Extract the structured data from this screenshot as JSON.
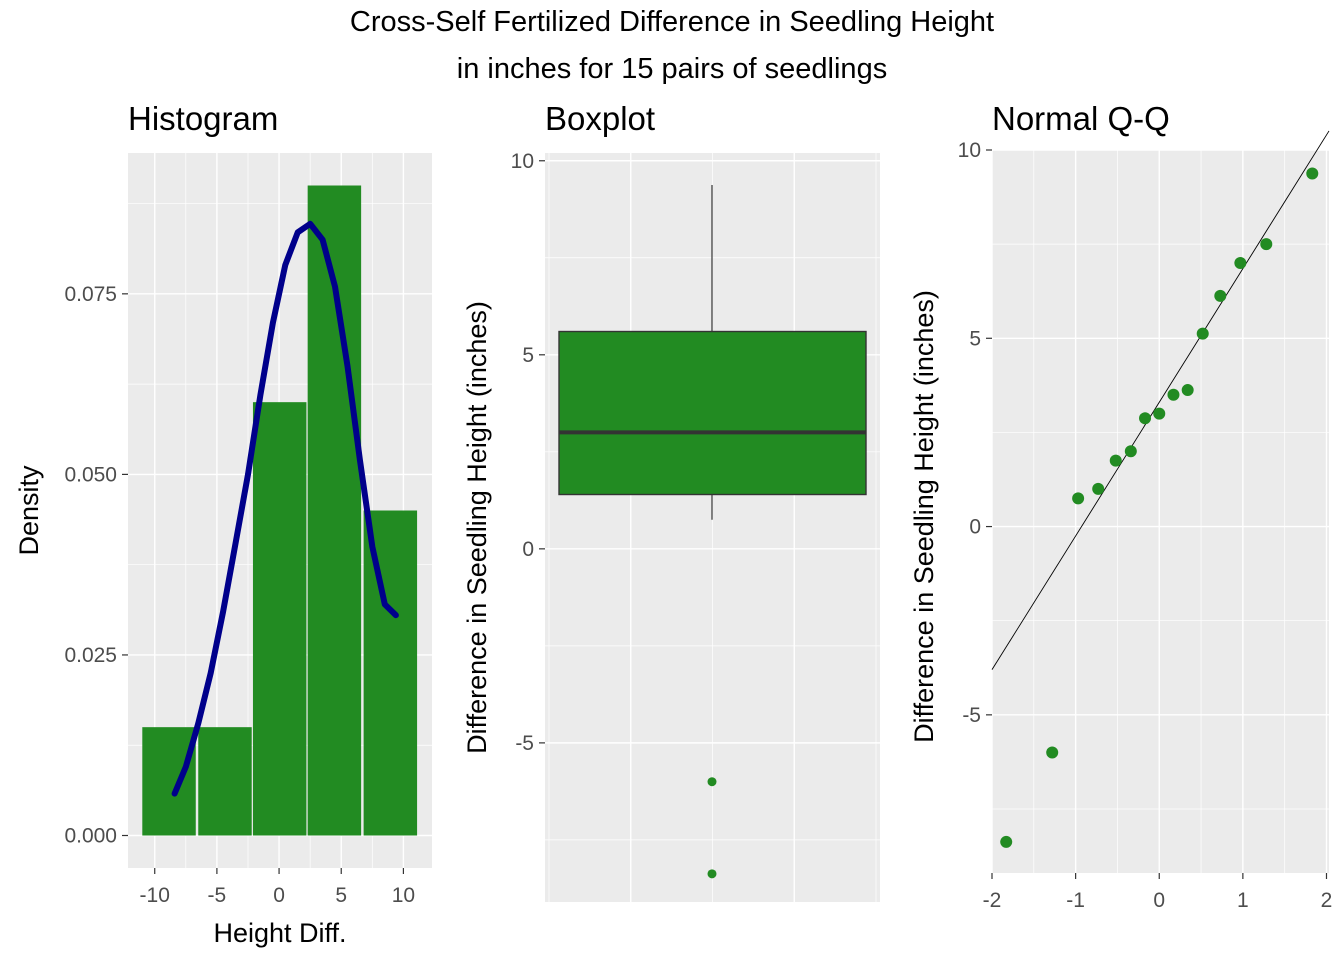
{
  "title_line1": "Cross-Self Fertilized Difference in Seedling Height",
  "title_line2": "in inches for 15 pairs of seedlings",
  "colors": {
    "panel_bg": "#EBEBEB",
    "grid": "#FFFFFF",
    "fill": "#228B22",
    "curve": "#00008B",
    "axis_text": "#4D4D4D"
  },
  "chart_data": [
    {
      "type": "bar",
      "panel": "histogram",
      "title": "Histogram",
      "xlabel": "Height Diff.",
      "ylabel": "Density",
      "xlim": [
        -12.15,
        12.3
      ],
      "ylim": [
        -0.0045,
        0.0945
      ],
      "x_ticks": [
        "-10",
        "-5",
        "0",
        "5",
        "10"
      ],
      "x_tick_values": [
        -10,
        -5,
        0,
        5,
        10
      ],
      "y_ticks": [
        "0.000",
        "0.025",
        "0.050",
        "0.075"
      ],
      "y_tick_values": [
        0,
        0.025,
        0.05,
        0.075
      ],
      "bins": [
        {
          "from": -11,
          "to": -6.7,
          "density": 0.015
        },
        {
          "from": -6.5,
          "to": -2.2,
          "density": 0.015
        },
        {
          "from": -2.1,
          "to": 2.2,
          "density": 0.06
        },
        {
          "from": 2.3,
          "to": 6.6,
          "density": 0.09
        },
        {
          "from": 6.8,
          "to": 11.1,
          "density": 0.045
        }
      ],
      "density_curve": {
        "x": [
          -8.4,
          -7.5,
          -6.5,
          -5.5,
          -4.5,
          -3.5,
          -2.5,
          -1.5,
          -0.5,
          0.5,
          1.5,
          2.5,
          3.5,
          4.5,
          5.5,
          6.5,
          7.5,
          8.5,
          9.4
        ],
        "y": [
          0.0058,
          0.0095,
          0.0155,
          0.0225,
          0.031,
          0.0405,
          0.05,
          0.061,
          0.071,
          0.079,
          0.0835,
          0.0847,
          0.0825,
          0.076,
          0.065,
          0.052,
          0.04,
          0.032,
          0.0305
        ]
      }
    },
    {
      "type": "boxplot",
      "panel": "boxplot",
      "title": "Boxplot",
      "ylabel": "Difference in Seedling Height (inches)",
      "ylim": [
        -9.1,
        10.2
      ],
      "y_ticks": [
        "-5",
        "0",
        "5",
        "10"
      ],
      "y_tick_values": [
        -5,
        0,
        5,
        10
      ],
      "box": {
        "whisker_low": 0.75,
        "q1": 1.4,
        "median": 3.0,
        "q3": 5.6,
        "whisker_high": 9.375
      },
      "outliers": [
        -6.0,
        -8.375
      ]
    },
    {
      "type": "scatter",
      "panel": "qq",
      "title": "Normal Q-Q",
      "xlabel": "",
      "ylabel": "Difference in Seedling Height (inches)",
      "xlim": [
        -2.0,
        2.03
      ],
      "ylim": [
        -9.2,
        10.0
      ],
      "x_ticks": [
        "-2",
        "-1",
        "0",
        "1",
        "2"
      ],
      "x_tick_values": [
        -2,
        -1,
        0,
        1,
        2
      ],
      "y_ticks": [
        "-5",
        "0",
        "5",
        "10"
      ],
      "y_tick_values": [
        -5,
        0,
        5,
        10
      ],
      "theoretical": [
        -1.83,
        -1.28,
        -0.97,
        -0.73,
        -0.52,
        -0.34,
        -0.17,
        0.0,
        0.17,
        0.34,
        0.52,
        0.73,
        0.97,
        1.28,
        1.83
      ],
      "sample": [
        -8.375,
        -6.0,
        0.75,
        1.0,
        1.75,
        2.0,
        2.875,
        3.0,
        3.5,
        3.625,
        5.125,
        6.125,
        7.0,
        7.5,
        9.375
      ],
      "reference_line": {
        "intercept": 3.3,
        "slope": 3.55
      }
    }
  ]
}
